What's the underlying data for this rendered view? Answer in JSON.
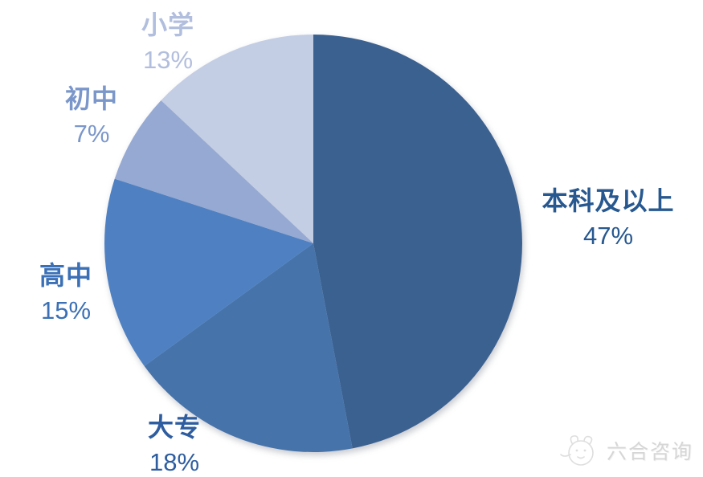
{
  "chart_data": {
    "type": "pie",
    "title": "",
    "unit": "%",
    "start_angle_deg": 0,
    "direction": "clockwise",
    "legend_position": "outside-labels",
    "slices": [
      {
        "label": "本科及以上",
        "value": 47,
        "percent_label": "47%",
        "color": "#3b6191",
        "label_color": "#27588f"
      },
      {
        "label": "大专",
        "value": 18,
        "percent_label": "18%",
        "color": "#4673aa",
        "label_color": "#2e5da0"
      },
      {
        "label": "高中",
        "value": 15,
        "percent_label": "15%",
        "color": "#4f81c2",
        "label_color": "#3b70b6"
      },
      {
        "label": "初中",
        "value": 7,
        "percent_label": "7%",
        "color": "#95a9d2",
        "label_color": "#7b97ca"
      },
      {
        "label": "小学",
        "value": 13,
        "percent_label": "13%",
        "color": "#c3cde4",
        "label_color": "#b2bedd"
      }
    ]
  },
  "watermark": {
    "text": "六合咨询"
  }
}
